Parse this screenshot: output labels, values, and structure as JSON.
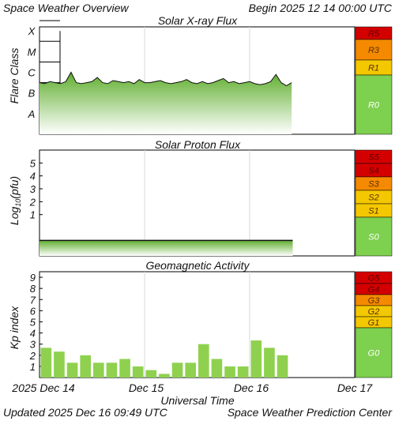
{
  "header": {
    "title": "Space Weather Overview",
    "begin": "Begin 2025 12 14 00:00 UTC"
  },
  "footer": {
    "updated": "Updated 2025 Dec 16 09:49 UTC",
    "source": "Space Weather Prediction Center"
  },
  "x_axis": {
    "label": "Universal Time",
    "ticks": [
      "2025 Dec 14",
      "Dec 15",
      "Dec 16",
      "Dec 17"
    ],
    "range_days": [
      0,
      3
    ],
    "data_end_day": 2.41
  },
  "colors": {
    "red": "#d40000",
    "orange": "#f58a00",
    "yellow": "#f4c800",
    "green": "#7ed04f",
    "bar_green": "#8fd14f",
    "grid": "#d9d9d9"
  },
  "chart_data": [
    {
      "type": "area",
      "title": "Solar X-ray Flux",
      "ylabel": "Flare Class",
      "y_ticks": [
        "A",
        "B",
        "C",
        "M",
        "X"
      ],
      "y_range": [
        -8.5,
        -3.3
      ],
      "scale_labels": [
        "R5",
        "R3",
        "R1",
        "R0"
      ],
      "x": [
        0,
        0.05,
        0.1,
        0.15,
        0.2,
        0.25,
        0.3,
        0.35,
        0.4,
        0.45,
        0.5,
        0.55,
        0.6,
        0.65,
        0.7,
        0.75,
        0.8,
        0.85,
        0.9,
        0.95,
        1.0,
        1.05,
        1.1,
        1.15,
        1.2,
        1.25,
        1.3,
        1.35,
        1.4,
        1.45,
        1.5,
        1.55,
        1.6,
        1.65,
        1.7,
        1.75,
        1.8,
        1.85,
        1.9,
        1.95,
        2.0,
        2.05,
        2.1,
        2.15,
        2.2,
        2.25,
        2.3,
        2.35,
        2.4
      ],
      "values": [
        -6.0,
        -6.05,
        -5.95,
        -6.0,
        -6.05,
        -5.95,
        -5.5,
        -6.0,
        -6.05,
        -6.0,
        -5.95,
        -5.75,
        -6.0,
        -6.05,
        -5.9,
        -5.95,
        -6.0,
        -5.95,
        -6.05,
        -5.85,
        -6.0,
        -6.0,
        -5.95,
        -5.9,
        -6.0,
        -6.05,
        -6.0,
        -5.95,
        -5.85,
        -6.0,
        -6.05,
        -5.95,
        -6.05,
        -6.0,
        -5.9,
        -5.8,
        -6.0,
        -5.95,
        -6.05,
        -6.0,
        -5.95,
        -6.05,
        -6.1,
        -6.05,
        -5.95,
        -5.6,
        -6.0,
        -6.15,
        -6.0
      ]
    },
    {
      "type": "area",
      "title": "Solar Proton Flux",
      "ylabel": "Log10(pfu)",
      "ylabel_main": "Log",
      "ylabel_sub": "10",
      "ylabel_tail": "(pfu)",
      "y_ticks": [
        "1",
        "2",
        "3",
        "4",
        "5"
      ],
      "y_range": [
        -2.2,
        6
      ],
      "scale_labels": [
        "S5",
        "S4",
        "S3",
        "S2",
        "S1",
        "S0"
      ],
      "x": [
        0,
        2.41
      ],
      "values": [
        -1.0,
        -1.0
      ]
    },
    {
      "type": "bar",
      "title": "Geomagnetic Activity",
      "ylabel": "Kp index",
      "y_ticks": [
        "1",
        "2",
        "3",
        "4",
        "5",
        "6",
        "7",
        "8",
        "9"
      ],
      "ylim": [
        0,
        9.5
      ],
      "scale_labels": [
        "G5",
        "G4",
        "G3",
        "G2",
        "G1",
        "G0"
      ],
      "x": [
        0,
        0.125,
        0.25,
        0.375,
        0.5,
        0.625,
        0.75,
        0.875,
        1.0,
        1.125,
        1.25,
        1.375,
        1.5,
        1.625,
        1.75,
        1.875,
        2.0,
        2.125,
        2.25
      ],
      "values": [
        2.67,
        2.33,
        1.33,
        2.0,
        1.33,
        1.33,
        1.67,
        1.0,
        0.67,
        0.33,
        1.33,
        1.33,
        3.0,
        1.67,
        1.0,
        1.0,
        3.33,
        2.67,
        2.0
      ]
    }
  ]
}
